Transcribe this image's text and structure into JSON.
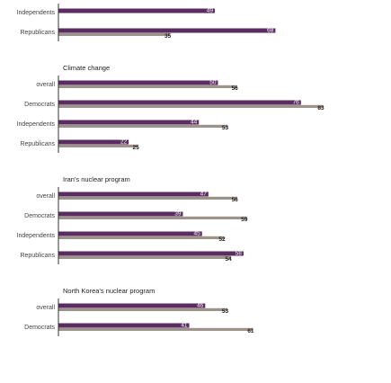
{
  "colors": {
    "series_a": "#5b2c62",
    "series_b": "#9c938a",
    "axis": "#333333"
  },
  "chart_data": {
    "type": "bar",
    "orientation": "horizontal",
    "xlim": [
      0,
      100
    ],
    "series": [
      {
        "color": "#5b2c62"
      },
      {
        "color": "#9c938a"
      }
    ],
    "groups": [
      {
        "title": "",
        "rows": [
          {
            "label": "Independents",
            "values": [
              49,
              null
            ]
          },
          {
            "label": "Republicans",
            "values": [
              68,
              35
            ]
          }
        ]
      },
      {
        "title": "Climate change",
        "rows": [
          {
            "label": "overall",
            "values": [
              50,
              56
            ]
          },
          {
            "label": "Democrats",
            "values": [
              76,
              83
            ]
          },
          {
            "label": "Independents",
            "values": [
              44,
              53
            ]
          },
          {
            "label": "Republicans",
            "values": [
              22,
              25
            ]
          }
        ]
      },
      {
        "title": "Iran's nuclear program",
        "rows": [
          {
            "label": "overall",
            "values": [
              47,
              56
            ]
          },
          {
            "label": "Democrats",
            "values": [
              39,
              59
            ]
          },
          {
            "label": "Independents",
            "values": [
              45,
              52
            ]
          },
          {
            "label": "Republicans",
            "values": [
              58,
              54
            ]
          }
        ]
      },
      {
        "title": "North Korea's nuclear program",
        "rows": [
          {
            "label": "overall",
            "values": [
              46,
              53
            ]
          },
          {
            "label": "Democrats",
            "values": [
              41,
              61
            ]
          }
        ]
      }
    ]
  }
}
